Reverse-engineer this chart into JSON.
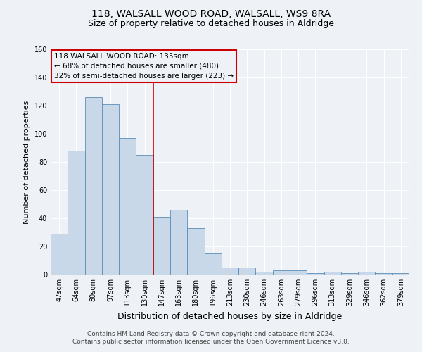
{
  "title": "118, WALSALL WOOD ROAD, WALSALL, WS9 8RA",
  "subtitle": "Size of property relative to detached houses in Aldridge",
  "xlabel": "Distribution of detached houses by size in Aldridge",
  "ylabel": "Number of detached properties",
  "categories": [
    "47sqm",
    "64sqm",
    "80sqm",
    "97sqm",
    "113sqm",
    "130sqm",
    "147sqm",
    "163sqm",
    "180sqm",
    "196sqm",
    "213sqm",
    "230sqm",
    "246sqm",
    "263sqm",
    "279sqm",
    "296sqm",
    "313sqm",
    "329sqm",
    "346sqm",
    "362sqm",
    "379sqm"
  ],
  "values": [
    29,
    88,
    126,
    121,
    97,
    85,
    41,
    46,
    33,
    15,
    5,
    5,
    2,
    3,
    3,
    1,
    2,
    1,
    2,
    1,
    1
  ],
  "bar_color": "#c8d8e8",
  "bar_edge_color": "#5b8db8",
  "vline_x": 5.5,
  "vline_color": "#cc0000",
  "ylim": [
    0,
    160
  ],
  "yticks": [
    0,
    20,
    40,
    60,
    80,
    100,
    120,
    140,
    160
  ],
  "annotation_box_text": "118 WALSALL WOOD ROAD: 135sqm\n← 68% of detached houses are smaller (480)\n32% of semi-detached houses are larger (223) →",
  "annotation_box_color": "#cc0000",
  "footer_line1": "Contains HM Land Registry data © Crown copyright and database right 2024.",
  "footer_line2": "Contains public sector information licensed under the Open Government Licence v3.0.",
  "background_color": "#eef2f7",
  "grid_color": "#ffffff",
  "title_fontsize": 10,
  "subtitle_fontsize": 9,
  "xlabel_fontsize": 9,
  "ylabel_fontsize": 8,
  "tick_fontsize": 7,
  "annotation_fontsize": 7.5,
  "footer_fontsize": 6.5
}
